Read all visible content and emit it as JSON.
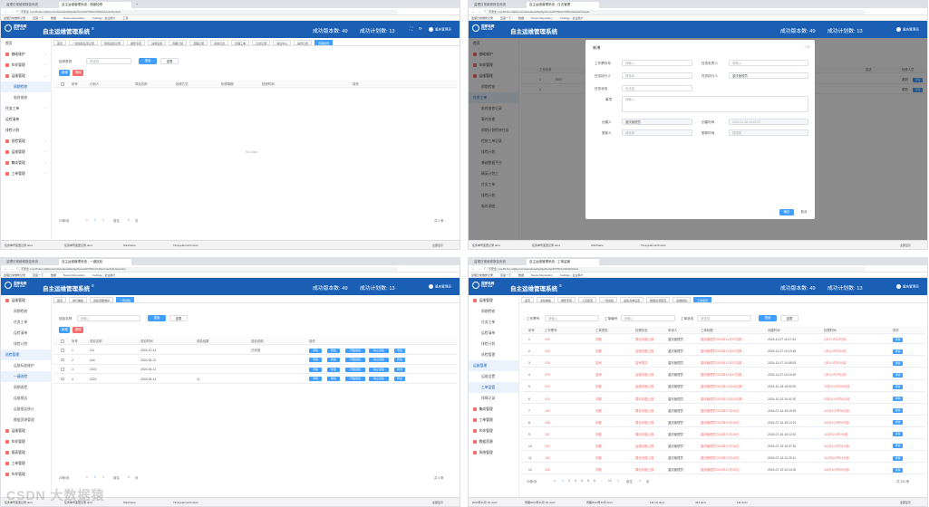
{
  "browser": {
    "tab1": "监理日常维修报告系统",
    "tab2": "自主运维管理系统 - 调度检修",
    "tab3": "自主运维管理系统 - 日志管理",
    "tab4": "自主运维管理系统 - 一键巡检",
    "tab5": "自主运维管理系统 - 工单监管",
    "url1": "不安全 | sq.45.dev.xdjxkj.com/auto/autodisplay/home/#/YWGL/XMGL/periodcontrol",
    "url2": "不安全 | sq.45.dev.xdjxkj.com/auto/autodisplay/home/#/YWGL/XMGL/dispatchrepair",
    "url3": "不安全 | sq.45.dev.xdjxkj.com/auto/autodisplay/home/#/YWGL/XJGL/oneclickinspection",
    "url4": "不安全 | sq.45.dev.xdjxkj.com/auto/autodisplay/home/#/YWGL/GDJG/ticket",
    "bookmarks": [
      "监理日常维修记录",
      "百度一下",
      "数据",
      "Nexus Repository",
      "Codingy - 企业用户",
      "工具"
    ]
  },
  "header": {
    "logo_cn": "国家电网",
    "logo_en": "State Grid",
    "title": "自主运维管理系统",
    "stat1": "成功版本数: 49",
    "stat2": "成功计划数: 13",
    "user": "重庆管理员"
  },
  "p1": {
    "side": [
      "首页",
      "基础维护",
      "伙伴管理",
      "运维管理",
      "周期检修",
      "临时维修",
      "任务工单",
      "运检清单",
      "排检计划",
      "巡检管理",
      "运维管理",
      "集成管理",
      "工单管理"
    ],
    "tabs": [
      "首页",
      "一键巡检任务记录",
      "现场巡检记录",
      "报修专项",
      "请求实施",
      "周期计划",
      "流程记录",
      "系统日志",
      "处理工单",
      "日志记录",
      "消息中心",
      "操作日志",
      "周期检修"
    ],
    "filter_label": "检修类别",
    "filter_ph": "请选择",
    "search": "搜索",
    "reset": "重置",
    "add": "新增",
    "del": "删除",
    "cols": [
      "序号",
      "计划人",
      "项目名称",
      "检修方式",
      "检修周期",
      "检修时间",
      "操作"
    ],
    "nodata": "No Data",
    "pager": {
      "size": "20条/页",
      "prev": "<",
      "page": "1",
      "next": ">",
      "goto": "前往",
      "gopage": "1",
      "pageunit": "页",
      "total": "共 0 条"
    }
  },
  "p2": {
    "side": [
      "首页",
      "基础维护",
      "伙伴管理",
      "运维管理",
      "周期检修",
      "任务工单",
      "临时维修记录",
      "事件处理",
      "周期计划检修任务",
      "检修工单记录",
      "排检计划",
      "基础数据平台",
      "精英计划工",
      "任务工单",
      "排检计划",
      "临时调度",
      "运维管理"
    ],
    "bgcols": [
      "工作标号",
      "描述",
      "检修人员"
    ],
    "bgrows": [
      [
        "1",
        "5007",
        "更新"
      ],
      [
        "2",
        "",
        "更新"
      ]
    ],
    "bgbtn": "详情",
    "modal_title": "新增",
    "f": {
      "l1": "工作票标号",
      "p1": "请输入",
      "l2": "任务负责人",
      "p2": "请输入",
      "l3": "任务执行人",
      "p3": "请选择",
      "l4": "任务执行人",
      "v4": "重庆管理员",
      "l5": "任务状态",
      "p5": "未完成",
      "l6": "事项",
      "p6": "请输入",
      "l7": "创建人",
      "v7": "重庆管理员",
      "l8": "创建时间",
      "v8": "2024-11-08 16:21:37",
      "l9": "更新人",
      "v9": "请选择",
      "l10": "更新时间",
      "v10": "请选择"
    },
    "ok": "确定",
    "cancel": "取消"
  },
  "p3": {
    "side": [
      "运维管理",
      "周期检修",
      "任务工单",
      "运检清单",
      "排检计划",
      "巡检管理",
      "运维标准维护",
      "一键巡检",
      "周期巡检",
      "运维报告",
      "运维报告统计",
      "数据资源管理",
      "运维管理",
      "伙伴管理",
      "报表管理",
      "工单管理",
      "伙伴管理"
    ],
    "tabs": [
      "首页",
      "排行看板",
      "巡检周期维护",
      "一键巡检"
    ],
    "filter_label": "巡检名称",
    "filter_ph": "请输入",
    "search": "搜索",
    "reset": "重置",
    "add": "新增",
    "del": "删除",
    "cols": [
      "序号",
      "巡检名称",
      "巡检时间",
      "巡检结果",
      "巡检说明",
      "操作"
    ],
    "rows": [
      [
        "1",
        "111",
        "2024-10-14",
        "",
        "已完成"
      ],
      [
        "2",
        "444",
        "2024-06-21",
        "",
        ""
      ],
      [
        "3",
        "2222",
        "2024-06-12",
        "",
        ""
      ],
      [
        "4",
        "2224",
        "2024-06-14",
        "11",
        ""
      ]
    ],
    "ops": [
      "详情",
      "修改",
      "开始巡检",
      "停止巡检",
      "导出"
    ],
    "pager": {
      "size": "20条/页",
      "prev": "<",
      "page": "1",
      "next": ">",
      "goto": "前往",
      "gopage": "1",
      "pageunit": "页",
      "total": "共 4 条"
    }
  },
  "p4": {
    "side": [
      "运维管理",
      "周期检修",
      "任务工单",
      "运检清单",
      "排检计划",
      "巡检管理",
      "运维管理",
      "运维设置",
      "工单监管",
      "排障记录",
      "集成管理",
      "工单管理",
      "伙伴管理",
      "数据资源",
      "系统管理"
    ],
    "tabs": [
      "首页",
      "巡检看板",
      "维修专项",
      "人员配置",
      "一键巡检",
      "运检清单设置",
      "数据资源配置",
      "运维报告",
      "工单监管"
    ],
    "labels": {
      "l1": "工作票号",
      "p1": "请输入",
      "l2": "工单编号",
      "p2": "请输入",
      "l3": "工单状态",
      "p3": "请选择"
    },
    "search": "搜索",
    "reset": "重置",
    "cols": [
      "序号",
      "工作票号",
      "工单类型",
      "处理状态",
      "申请人",
      "工单标题",
      "创建时间",
      "处理时间",
      "操作"
    ],
    "rows": [
      [
        "1",
        "231",
        "问题",
        "周检问题上报",
        "重庆管理员",
        "重庆管理员2024年11月07日报...",
        "2024-11-07 10:17:51",
        "1天2小时23分钟"
      ],
      [
        "2",
        "230",
        "问题",
        "运维问题上报",
        "重庆管理员",
        "重庆管理员2024年11月07日报...",
        "2024-11-07 10:13:45",
        "1天2小时26分钟"
      ],
      [
        "3",
        "228",
        "复审",
        "复审提交",
        "重庆管理员",
        "重庆管理员2024年11月07日报...",
        "2024-11-07 10:08:53",
        "1天2小时31分钟"
      ],
      [
        "4",
        "229",
        "复审",
        "运维问题上报",
        "重庆管理员",
        "重庆管理员2024年11月07日报...",
        "2024-11-07 10:14:52",
        "1天2小时29分钟"
      ],
      [
        "5",
        "220",
        "问题",
        "运维问题上报",
        "重庆管理员",
        "重庆管理员2024年10月18日报...",
        "2024-10-18 15:53:53",
        "20天21小时49分钟"
      ],
      [
        "6",
        "216",
        "问题",
        "周检问题上报",
        "重庆管理员",
        "重庆管理员2024年10月15日报...",
        "2024-10-15 15:31:53",
        "23天21小时58分钟"
      ],
      [
        "7",
        "189",
        "问题",
        "周检问题上报",
        "重庆管理员",
        "重庆管理员2024年07月16日...",
        "2024-07-16 15:15:26",
        "115天2小时58分钟"
      ],
      [
        "8",
        "188",
        "问题",
        "周检问题上报",
        "重庆管理员",
        "重庆管理员2024年07月16日...",
        "2024-07-16 15:14:29",
        "115天2小时59分钟"
      ],
      [
        "9",
        "187",
        "问题",
        "周检问题上报",
        "重庆管理员",
        "重庆管理员2024年07月16日...",
        "2024-07-16 15:12:53",
        "115天3小时0分钟"
      ],
      [
        "10",
        "183",
        "问题",
        "运维问题上报",
        "重庆管理员",
        "重庆管理员2024年07月15日...",
        "2024-07-15 15:37:53",
        "116天2小时35分钟"
      ],
      [
        "11",
        "159",
        "问题",
        "周检问题上报",
        "重庆管理员",
        "重庆管理员2024年07月15日...",
        "2024-07-15 12:20:12",
        "116天5小时53分钟"
      ],
      [
        "12",
        "158",
        "问题",
        "周检问题上报",
        "重庆管理员",
        "重庆管理员2024年07月15日...",
        "2024-07-15 12:14:32",
        "116天5小时59分钟"
      ]
    ],
    "op": "详情",
    "pager": {
      "size": "20条/页",
      "prev": "<",
      "p1": "1",
      "p2": "2",
      "p3": "3",
      "p4": "4",
      "p5": "5",
      "p6": "6",
      "dots": "...",
      "p8": "12",
      "next": ">",
      "goto": "前往",
      "gopage": "1",
      "pageunit": "页",
      "total": "共 231 条"
    }
  },
  "taskbar": {
    "f1": "任务单号变更记录.docx",
    "f2": "任务单号变更记录.docx",
    "f3": "Wireframe",
    "f4": "Timeyearmonth.docx",
    "f5": "2024年11月 (2).docx",
    "f6": "周期2024年11月 (2).docx",
    "f7": "周期2024年11月.docx",
    "f8": "111 (1).docx",
    "f9": "444.docx",
    "f10": "111.docx",
    "more": "全部显示"
  },
  "watermark": "CSDN 大数据猿"
}
